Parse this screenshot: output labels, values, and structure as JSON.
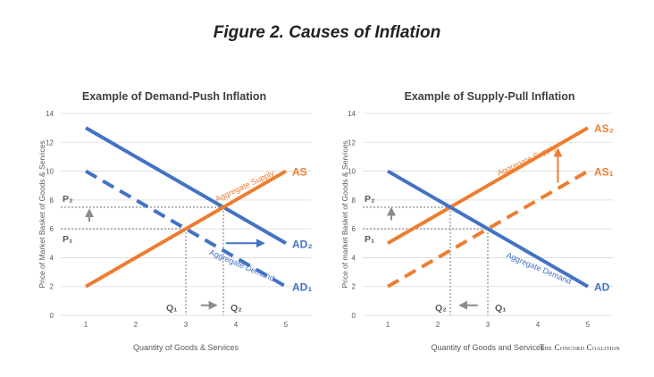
{
  "figure_title": "Figure 2. Causes of Inflation",
  "credit": "The Concord Coalition",
  "colors": {
    "blue": "#4472C4",
    "orange": "#ED7D31",
    "grid": "#d9d9d9",
    "dash_guide": "#a6a6a6",
    "arrow_gray": "#8c8c8c",
    "text": "#595959"
  },
  "chart_data": [
    {
      "type": "line",
      "title": "Example of Demand-Push Inflation",
      "xlabel": "Quantity of Goods & Services",
      "ylabel": "Price of Market Basket of Goods & Services",
      "xlim": [
        0.5,
        5.5
      ],
      "ylim": [
        0,
        14
      ],
      "xticks": [
        1,
        2,
        3,
        4,
        5
      ],
      "yticks": [
        0,
        2,
        4,
        6,
        8,
        10,
        12,
        14
      ],
      "grid": true,
      "series": [
        {
          "name": "AD",
          "label": "AD₂",
          "color": "blue",
          "style": "solid",
          "x": [
            1,
            5
          ],
          "y": [
            13,
            5
          ]
        },
        {
          "name": "AD",
          "label": "AD₁",
          "color": "blue",
          "style": "dashed",
          "x": [
            1,
            5
          ],
          "y": [
            10,
            2
          ]
        },
        {
          "name": "AS",
          "label": "AS",
          "color": "orange",
          "style": "solid",
          "x": [
            1,
            5
          ],
          "y": [
            2,
            10
          ]
        }
      ],
      "curve_text": [
        {
          "text": "Aggregate Supply",
          "color": "orange",
          "x": 4.2,
          "y": 8.8,
          "angle": -25
        },
        {
          "text": "Aggregate Demand",
          "color": "blue",
          "x": 4.1,
          "y": 3.3,
          "angle": 23
        }
      ],
      "equilibria": [
        {
          "x_label": "Q₁",
          "y_label": "P₁",
          "x": 3.0,
          "y": 6.0
        },
        {
          "x_label": "Q₂",
          "y_label": "P₂",
          "x": 3.75,
          "y": 7.5
        }
      ],
      "arrows": [
        {
          "color": "blue",
          "x1": 3.8,
          "y1": 5.0,
          "x2": 4.55,
          "y2": 5.0
        },
        {
          "color": "gray",
          "x1": 3.3,
          "y1": 0.7,
          "x2": 3.6,
          "y2": 0.7
        },
        {
          "color": "gray",
          "x1": 0.5,
          "y1": 6.5,
          "x2": 0.5,
          "y2": 7.3
        }
      ]
    },
    {
      "type": "line",
      "title": "Example of Supply-Pull Inflation",
      "xlabel": "Quantity of Goods and Services",
      "ylabel": "Price of market Basket of Goods & Services",
      "xlim": [
        0.5,
        5.5
      ],
      "ylim": [
        0,
        14
      ],
      "xticks": [
        1,
        2,
        3,
        4,
        5
      ],
      "yticks": [
        0,
        2,
        4,
        6,
        8,
        10,
        12,
        14
      ],
      "grid": true,
      "series": [
        {
          "name": "AS",
          "label": "AS₂",
          "color": "orange",
          "style": "solid",
          "x": [
            1,
            5
          ],
          "y": [
            5,
            13
          ]
        },
        {
          "name": "AS",
          "label": "AS₁",
          "color": "orange",
          "style": "dashed",
          "x": [
            1,
            5
          ],
          "y": [
            2,
            10
          ]
        },
        {
          "name": "AD",
          "label": "AD",
          "color": "blue",
          "style": "solid",
          "x": [
            1,
            5
          ],
          "y": [
            10,
            2
          ]
        }
      ],
      "curve_text": [
        {
          "text": "Aggregate Supply",
          "color": "orange",
          "x": 3.8,
          "y": 10.6,
          "angle": -25
        },
        {
          "text": "Aggregate Demand",
          "color": "blue",
          "x": 4.0,
          "y": 3.1,
          "angle": 23
        }
      ],
      "equilibria": [
        {
          "x_label": "Q₂",
          "y_label": "P₂",
          "x": 2.25,
          "y": 7.5
        },
        {
          "x_label": "Q₁",
          "y_label": "P₁",
          "x": 3.0,
          "y": 6.0
        }
      ],
      "arrows": [
        {
          "color": "orange",
          "x1": 4.4,
          "y1": 9.2,
          "x2": 4.4,
          "y2": 11.5
        },
        {
          "color": "gray",
          "x1": 2.8,
          "y1": 0.7,
          "x2": 2.45,
          "y2": 0.7
        },
        {
          "color": "gray",
          "x1": 0.5,
          "y1": 6.6,
          "x2": 0.5,
          "y2": 7.4
        }
      ]
    }
  ]
}
